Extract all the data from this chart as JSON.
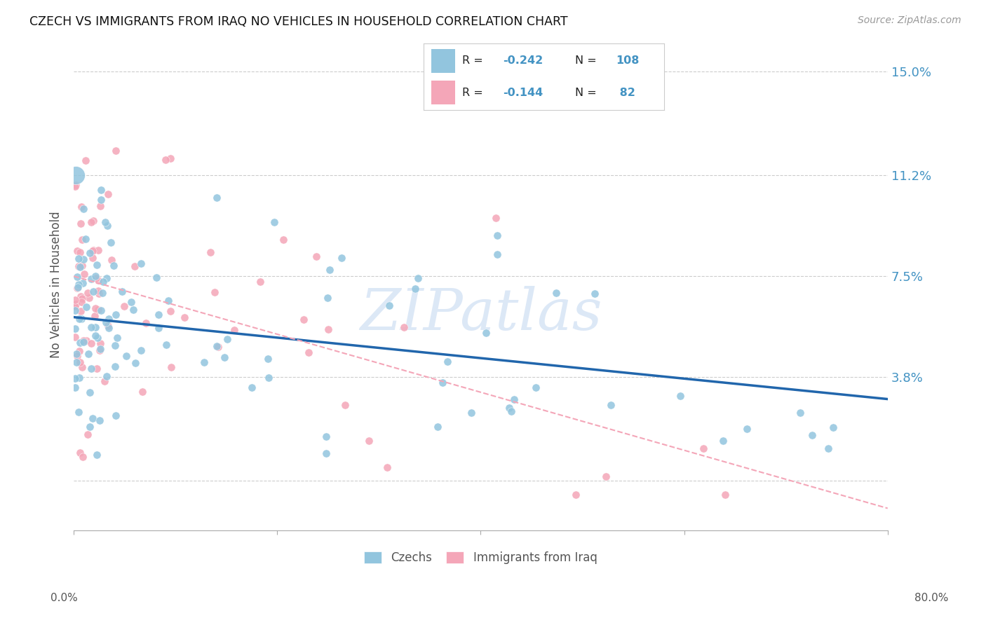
{
  "title": "CZECH VS IMMIGRANTS FROM IRAQ NO VEHICLES IN HOUSEHOLD CORRELATION CHART",
  "source": "Source: ZipAtlas.com",
  "ylabel": "No Vehicles in Household",
  "ytick_vals": [
    0.0,
    0.038,
    0.075,
    0.112,
    0.15
  ],
  "ytick_labels": [
    "",
    "3.8%",
    "7.5%",
    "11.2%",
    "15.0%"
  ],
  "xmin": 0.0,
  "xmax": 0.8,
  "ymin": -0.018,
  "ymax": 0.162,
  "watermark_text": "ZIPatlas",
  "legend_label1": "Czechs",
  "legend_label2": "Immigrants from Iraq",
  "color_blue": "#92c5de",
  "color_pink": "#f4a6b8",
  "color_blue_line": "#2166ac",
  "color_pink_line": "#f4a6b8",
  "color_blue_text": "#4393c3",
  "color_dark_text": "#333333",
  "grid_color": "#cccccc",
  "czech_line_x0": 0.0,
  "czech_line_y0": 0.06,
  "czech_line_x1": 0.8,
  "czech_line_y1": 0.03,
  "iraq_line_x0": 0.0,
  "iraq_line_y0": 0.075,
  "iraq_line_x1": 0.8,
  "iraq_line_y1": -0.01,
  "legend_R1": "-0.242",
  "legend_N1": "108",
  "legend_R2": "-0.144",
  "legend_N2": " 82"
}
